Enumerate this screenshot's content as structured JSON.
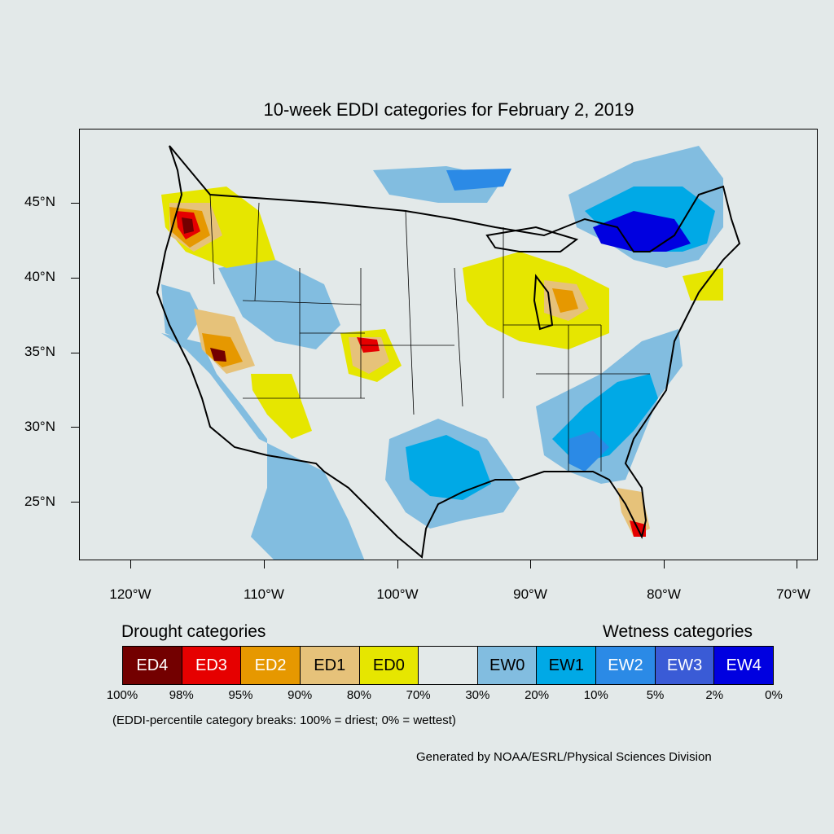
{
  "title": "10-week EDDI categories for February 2, 2019",
  "axes": {
    "lat_labels": [
      "45°N",
      "40°N",
      "35°N",
      "30°N",
      "25°N"
    ],
    "lon_labels": [
      "120°W",
      "110°W",
      "100°W",
      "90°W",
      "80°W",
      "70°W"
    ]
  },
  "legend": {
    "drought_heading": "Drought categories",
    "wetness_heading": "Wetness categories",
    "categories": [
      {
        "label": "ED4",
        "color": "#730000",
        "text_color": "#ffffff"
      },
      {
        "label": "ED3",
        "color": "#e60000",
        "text_color": "#ffffff"
      },
      {
        "label": "ED2",
        "color": "#e69800",
        "text_color": "#ffffff"
      },
      {
        "label": "ED1",
        "color": "#e6c27a",
        "text_color": "#000000"
      },
      {
        "label": "ED0",
        "color": "#e6e600",
        "text_color": "#000000"
      },
      {
        "label": "",
        "color": "#e3e9e9",
        "text_color": "#000000"
      },
      {
        "label": "EW0",
        "color": "#82bde0",
        "text_color": "#000000"
      },
      {
        "label": "EW1",
        "color": "#00a9e6",
        "text_color": "#000000"
      },
      {
        "label": "EW2",
        "color": "#2b8ae6",
        "text_color": "#ffffff"
      },
      {
        "label": "EW3",
        "color": "#3a5bd6",
        "text_color": "#ffffff"
      },
      {
        "label": "EW4",
        "color": "#0000e0",
        "text_color": "#ffffff"
      }
    ],
    "breaks": [
      "100%",
      "98%",
      "95%",
      "90%",
      "80%",
      "70%",
      "30%",
      "20%",
      "10%",
      "5%",
      "2%",
      "0%"
    ]
  },
  "note": "(EDDI-percentile category breaks: 100% = driest; 0% = wettest)",
  "credit": "Generated by NOAA/ESRL/Physical Sciences Division"
}
